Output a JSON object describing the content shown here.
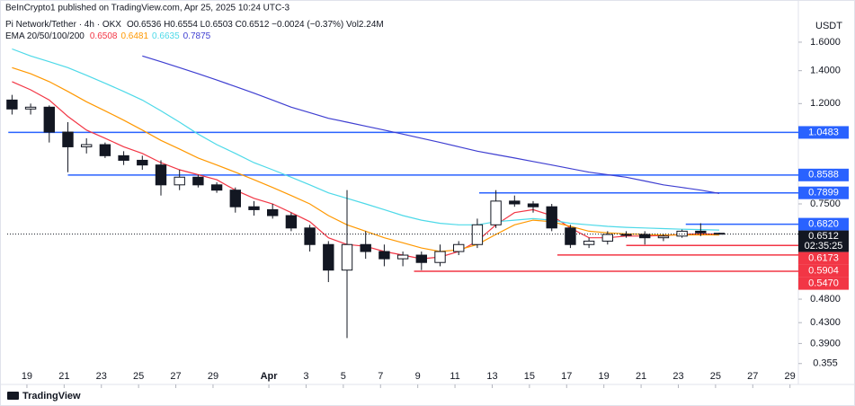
{
  "chart_data": {
    "type": "candlestick",
    "publisher": "BeInCrypto1 published on TradingView.com, Apr 25, 2025 10:24 UTC-3",
    "symbol": "Pi Network/Tether · 4h · OKX",
    "ohlc_legend": "O0.6536 H0.6554 L0.6503 C0.6512 −0.0024 (−0.37%) Vol2.24M",
    "indicator": "EMA 20/50/100/200",
    "currency": "USDT",
    "footer": "TradingView",
    "log_scale": true,
    "up_color": "#ffffff",
    "down_color": "#131722",
    "x": [
      18.2,
      19.2,
      20.2,
      21.2,
      22.2,
      23.2,
      24.2,
      25.2,
      26.2,
      27.2,
      28.2,
      29.2,
      30.2,
      31.2,
      32.2,
      33.2,
      34.2,
      35.2,
      36.2,
      37.2,
      38.2,
      39.2,
      40.2,
      41.2,
      42.2,
      43.2,
      44.2,
      45.2,
      46.2,
      47.2,
      48.2,
      49.2,
      50.2,
      51.2,
      52.2,
      53.2,
      54.2,
      55.2,
      56.2
    ],
    "open": [
      1.22,
      1.17,
      1.18,
      1.05,
      0.98,
      0.99,
      0.94,
      0.92,
      0.9,
      0.82,
      0.85,
      0.82,
      0.8,
      0.74,
      0.73,
      0.71,
      0.67,
      0.62,
      0.55,
      0.62,
      0.6,
      0.58,
      0.59,
      0.57,
      0.6,
      0.62,
      0.68,
      0.76,
      0.75,
      0.74,
      0.67,
      0.62,
      0.63,
      0.65,
      0.65,
      0.64,
      0.645,
      0.66,
      0.6536
    ],
    "high": [
      1.25,
      1.2,
      1.19,
      1.1,
      1.02,
      1.0,
      0.96,
      0.94,
      0.92,
      0.88,
      0.86,
      0.83,
      0.81,
      0.76,
      0.75,
      0.72,
      0.68,
      0.63,
      0.8,
      0.66,
      0.62,
      0.6,
      0.6,
      0.62,
      0.63,
      0.7,
      0.8,
      0.78,
      0.76,
      0.75,
      0.68,
      0.64,
      0.66,
      0.66,
      0.66,
      0.65,
      0.665,
      0.685,
      0.6554
    ],
    "low": [
      1.14,
      1.14,
      1.0,
      0.87,
      0.95,
      0.93,
      0.9,
      0.88,
      0.78,
      0.8,
      0.81,
      0.79,
      0.72,
      0.71,
      0.7,
      0.66,
      0.6,
      0.52,
      0.4,
      0.58,
      0.56,
      0.56,
      0.55,
      0.56,
      0.59,
      0.61,
      0.67,
      0.74,
      0.72,
      0.66,
      0.61,
      0.61,
      0.62,
      0.64,
      0.62,
      0.63,
      0.64,
      0.645,
      0.6503
    ],
    "close": [
      1.17,
      1.18,
      1.05,
      0.98,
      0.99,
      0.94,
      0.92,
      0.9,
      0.82,
      0.85,
      0.82,
      0.8,
      0.74,
      0.73,
      0.71,
      0.67,
      0.62,
      0.55,
      0.62,
      0.6,
      0.58,
      0.59,
      0.57,
      0.6,
      0.62,
      0.68,
      0.76,
      0.75,
      0.74,
      0.67,
      0.62,
      0.63,
      0.65,
      0.65,
      0.64,
      0.645,
      0.66,
      0.655,
      0.6512
    ],
    "series": [
      {
        "name": "EMA 20",
        "color": "#f23645",
        "values": [
          1.33,
          1.28,
          1.22,
          1.13,
          1.06,
          1.02,
          0.98,
          0.95,
          0.91,
          0.88,
          0.86,
          0.84,
          0.8,
          0.77,
          0.75,
          0.72,
          0.69,
          0.64,
          0.62,
          0.615,
          0.6,
          0.59,
          0.58,
          0.585,
          0.6,
          0.63,
          0.68,
          0.72,
          0.73,
          0.71,
          0.67,
          0.64,
          0.64,
          0.645,
          0.645,
          0.647,
          0.65,
          0.652,
          0.6508
        ]
      },
      {
        "name": "EMA 50",
        "color": "#ff9800",
        "values": [
          1.42,
          1.38,
          1.33,
          1.27,
          1.21,
          1.16,
          1.11,
          1.06,
          1.01,
          0.97,
          0.93,
          0.9,
          0.87,
          0.84,
          0.81,
          0.78,
          0.75,
          0.71,
          0.68,
          0.66,
          0.64,
          0.625,
          0.61,
          0.6,
          0.605,
          0.62,
          0.65,
          0.68,
          0.695,
          0.69,
          0.675,
          0.66,
          0.655,
          0.652,
          0.65,
          0.648,
          0.648,
          0.649,
          0.6481
        ]
      },
      {
        "name": "EMA 100",
        "color": "#4dd9e8",
        "values": [
          1.55,
          1.5,
          1.46,
          1.42,
          1.37,
          1.32,
          1.27,
          1.22,
          1.16,
          1.1,
          1.04,
          0.99,
          0.95,
          0.91,
          0.88,
          0.85,
          0.82,
          0.79,
          0.77,
          0.75,
          0.73,
          0.71,
          0.695,
          0.685,
          0.68,
          0.68,
          0.69,
          0.695,
          0.7,
          0.695,
          0.685,
          0.68,
          0.675,
          0.672,
          0.67,
          0.668,
          0.666,
          0.665,
          0.6635
        ]
      },
      {
        "name": "EMA 200",
        "color": "#3f3fd1",
        "values": [
          null,
          null,
          null,
          null,
          null,
          null,
          null,
          1.5,
          1.46,
          1.42,
          1.38,
          1.34,
          1.3,
          1.26,
          1.22,
          1.18,
          1.15,
          1.12,
          1.1,
          1.08,
          1.06,
          1.04,
          1.02,
          1.0,
          0.98,
          0.96,
          0.945,
          0.93,
          0.915,
          0.9,
          0.885,
          0.87,
          0.86,
          0.85,
          0.835,
          0.82,
          0.81,
          0.8,
          0.7875
        ]
      }
    ],
    "levels": [
      {
        "value": 1.0483,
        "color": "#2962ff",
        "x_start": 18
      },
      {
        "value": 0.8588,
        "color": "#2962ff",
        "x_start": 21.2
      },
      {
        "value": 0.7899,
        "color": "#2962ff",
        "x_start": 43.3
      },
      {
        "value": 0.682,
        "label": "0.6820",
        "color": "#2962ff",
        "x_start": 54.4
      },
      {
        "value": 0.6173,
        "color": "#f23645",
        "x_start": 51.2
      },
      {
        "value": 0.5904,
        "color": "#f23645",
        "x_start": 47.5
      },
      {
        "value": 0.547,
        "label": "0.5470",
        "color": "#f23645",
        "x_start": 39.8
      }
    ],
    "last_price": 0.6512,
    "countdown": "02:35:25",
    "ylim": [
      0.326,
      1.885
    ],
    "yticks": [
      {
        "value": 1.6,
        "label": "1.6000"
      },
      {
        "value": 1.4,
        "label": "1.4000"
      },
      {
        "value": 1.2,
        "label": "1.2000"
      },
      {
        "value": 0.75,
        "label": "0.7500"
      },
      {
        "value": 0.48,
        "label": "0.4800"
      },
      {
        "value": 0.43,
        "label": "0.4300"
      },
      {
        "value": 0.39,
        "label": "0.3900"
      },
      0.355
    ],
    "xlim": [
      17.94,
      60.45
    ],
    "xticks": [
      19,
      21,
      23,
      25,
      27,
      29,
      {
        "value": 32,
        "label": "Apr"
      },
      {
        "value": 34,
        "label": "3"
      },
      {
        "value": 36,
        "label": "5"
      },
      {
        "value": 38,
        "label": "7"
      },
      {
        "value": 40,
        "label": "9"
      },
      {
        "value": 42,
        "label": "11"
      },
      {
        "value": 44,
        "label": "13"
      },
      {
        "value": 46,
        "label": "15"
      },
      {
        "value": 48,
        "label": "17"
      },
      {
        "value": 50,
        "label": "19"
      },
      {
        "value": 52,
        "label": "21"
      },
      {
        "value": 54,
        "label": "23"
      },
      {
        "value": 56,
        "label": "25"
      },
      {
        "value": 58,
        "label": "27"
      },
      {
        "value": 60,
        "label": "29"
      }
    ]
  }
}
